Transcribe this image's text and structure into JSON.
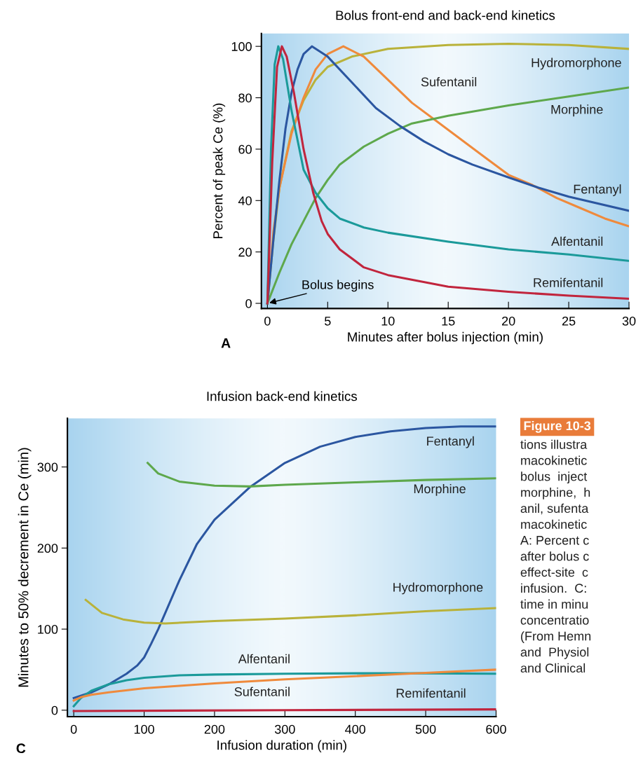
{
  "chart_data": [
    {
      "type": "line",
      "title": "Bolus front-end and back-end kinetics",
      "xlabel": "Minutes after bolus injection (min)",
      "ylabel": "Percent of peak Ce (%)",
      "xlim": [
        -0.5,
        30
      ],
      "ylim": [
        -2,
        105
      ],
      "xticks": [
        0,
        5,
        10,
        15,
        20,
        25,
        30
      ],
      "yticks": [
        0,
        20,
        40,
        60,
        80,
        100
      ],
      "grid": false,
      "legend": false,
      "marker": "none",
      "line_style": "solid",
      "annotations": [
        {
          "text": "Bolus begins",
          "x": 0,
          "y": 0
        },
        "A"
      ],
      "series": [
        {
          "name": "Hydromorphone",
          "color": "#b9b23a",
          "x": [
            0,
            0.5,
            1,
            2,
            3,
            4,
            5,
            7,
            10,
            15,
            20,
            25,
            30
          ],
          "values": [
            0,
            25,
            45,
            67,
            79,
            87,
            92,
            96,
            99,
            100.5,
            101,
            100.5,
            99
          ]
        },
        {
          "name": "Sufentanil",
          "color": "#ef8a3c",
          "x": [
            0,
            0.5,
            1,
            2,
            3,
            4,
            5,
            6.3,
            8,
            10,
            12,
            14,
            16,
            18,
            20,
            22,
            24,
            26,
            28,
            30
          ],
          "values": [
            0,
            28,
            45,
            66,
            80,
            91,
            97,
            100,
            96,
            87,
            78,
            71,
            64,
            57,
            50,
            46,
            41,
            37,
            33,
            30
          ]
        },
        {
          "name": "Morphine",
          "color": "#5ea84c",
          "x": [
            0,
            1,
            2,
            3,
            4,
            5,
            6,
            8,
            10,
            12,
            15,
            20,
            25,
            30
          ],
          "values": [
            0,
            12,
            23,
            32,
            41,
            48,
            54,
            61,
            66,
            70,
            73,
            77,
            80.5,
            84
          ]
        },
        {
          "name": "Fentanyl",
          "color": "#2b56a0",
          "x": [
            0,
            0.5,
            1,
            1.5,
            2,
            2.5,
            3,
            3.7,
            5,
            7,
            9,
            11,
            13,
            15,
            17,
            20,
            22.5,
            25,
            30
          ],
          "values": [
            0,
            25,
            48,
            68,
            82,
            91,
            97,
            100,
            96,
            86,
            76,
            69,
            63,
            58,
            54,
            49,
            45,
            41.5,
            36
          ]
        },
        {
          "name": "Alfentanil",
          "color": "#1b9a9a",
          "x": [
            0,
            0.3,
            0.6,
            0.9,
            1.3,
            2,
            3,
            4,
            5,
            6,
            8,
            10,
            15,
            20,
            25,
            30
          ],
          "values": [
            0,
            60,
            93,
            100,
            95,
            75,
            52,
            43,
            37,
            33,
            29.5,
            27.5,
            24,
            21,
            19,
            16.5
          ]
        },
        {
          "name": "Remifentanil",
          "color": "#c1253d",
          "x": [
            0,
            0.4,
            0.8,
            1.2,
            1.6,
            2.2,
            3,
            3.8,
            4.5,
            5,
            6,
            8,
            10,
            15,
            20,
            25,
            30
          ],
          "values": [
            0,
            55,
            92,
            100,
            96,
            82,
            60,
            43,
            32,
            27,
            21,
            14,
            11,
            6.5,
            4.5,
            3,
            1.8
          ]
        }
      ]
    },
    {
      "type": "line",
      "title": "Infusion back-end kinetics",
      "xlabel": "Infusion duration (min)",
      "ylabel": "Minutes to 50% decrement in Ce (min)",
      "xlim": [
        -9,
        600
      ],
      "ylim": [
        -8,
        360
      ],
      "xticks": [
        0,
        100,
        200,
        300,
        400,
        500,
        600
      ],
      "yticks": [
        0,
        100,
        200,
        300
      ],
      "grid": false,
      "legend": false,
      "marker": "none",
      "line_style": "solid",
      "annotations": [
        "C"
      ],
      "series": [
        {
          "name": "Fentanyl",
          "color": "#2b56a0",
          "x": [
            0,
            25,
            50,
            75,
            90,
            100,
            110,
            120,
            135,
            150,
            175,
            200,
            250,
            300,
            350,
            400,
            450,
            500,
            550,
            600
          ],
          "values": [
            15,
            22,
            32,
            45,
            55,
            65,
            82,
            100,
            130,
            160,
            205,
            235,
            275,
            305,
            325,
            337,
            344,
            348,
            350,
            350
          ]
        },
        {
          "name": "Morphine",
          "color": "#5ea84c",
          "x": [
            105,
            120,
            150,
            200,
            250,
            300,
            400,
            500,
            600
          ],
          "values": [
            305,
            292,
            282,
            277,
            276,
            278,
            281,
            284,
            286
          ]
        },
        {
          "name": "Hydromorphone",
          "color": "#b9b23a",
          "x": [
            17,
            40,
            70,
            100,
            130,
            200,
            300,
            400,
            500,
            600
          ],
          "values": [
            136,
            120,
            112,
            108,
            107,
            110,
            113,
            117,
            122,
            126
          ]
        },
        {
          "name": "Alfentanil",
          "color": "#1b9a9a",
          "x": [
            0,
            10,
            25,
            50,
            75,
            100,
            150,
            200,
            300,
            400,
            500,
            600
          ],
          "values": [
            5,
            15,
            24,
            32,
            37,
            40,
            43,
            44,
            45,
            45.5,
            45.5,
            45
          ]
        },
        {
          "name": "Sufentanil",
          "color": "#ef8a3c",
          "x": [
            0,
            10,
            25,
            50,
            100,
            150,
            200,
            300,
            400,
            500,
            600
          ],
          "values": [
            12,
            16,
            19,
            22,
            27,
            30,
            33,
            38,
            42,
            46,
            50
          ]
        },
        {
          "name": "Remifentanil",
          "color": "#c1253d",
          "x": [
            0,
            300,
            600
          ],
          "values": [
            -1,
            0,
            1
          ]
        }
      ]
    },
    {
      "type": "other",
      "title": "Figure 10-3",
      "annotations": [
        "tions illustra",
        "macokinetic",
        "bolus  inject",
        "morphine,  h",
        "anil, sufenta",
        "macokinetic",
        "A: Percent c",
        "after bolus c",
        "effect-site  c",
        "infusion.  C:",
        "time in minu",
        "concentratio",
        "(From Hemn",
        "and  Physiol",
        "and Clinical"
      ]
    }
  ]
}
